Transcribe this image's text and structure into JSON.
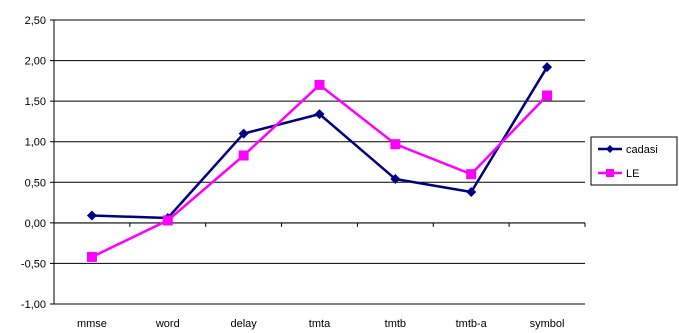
{
  "chart_data": {
    "type": "line",
    "categories": [
      "mmse",
      "word",
      "delay",
      "tmta",
      "tmtb",
      "tmtb-a",
      "symbol"
    ],
    "series": [
      {
        "name": "cadasi",
        "values": [
          0.09,
          0.06,
          1.1,
          1.34,
          0.54,
          0.38,
          1.92
        ],
        "color": "#000080",
        "marker": "diamond"
      },
      {
        "name": "LE",
        "values": [
          -0.42,
          0.03,
          0.83,
          1.7,
          0.97,
          0.6,
          1.57
        ],
        "color": "#FF00FF",
        "marker": "square"
      }
    ],
    "y_ticks": [
      "-1,00",
      "-0,50",
      "0,00",
      "0,50",
      "1,00",
      "1,50",
      "2,00",
      "2,50"
    ],
    "ylim": [
      -1.0,
      2.5
    ],
    "grid": true,
    "legend_position": "right",
    "title": "",
    "xlabel": "",
    "ylabel": ""
  }
}
